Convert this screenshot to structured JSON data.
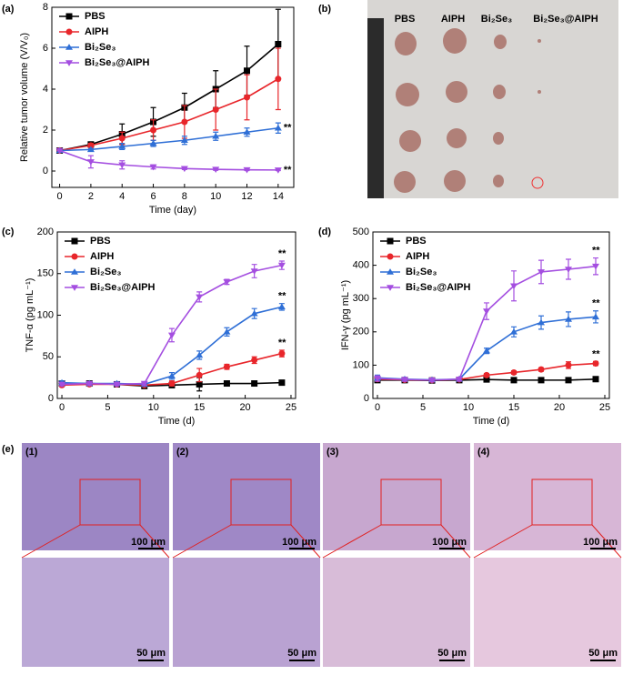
{
  "chart_data": [
    {
      "type": "line",
      "panel": "(a)",
      "xlabel": "Time (day)",
      "ylabel": "Relative tumor volume (V/V₀)",
      "x": [
        0,
        2,
        4,
        6,
        8,
        10,
        12,
        14
      ],
      "xlim": [
        -0.5,
        15
      ],
      "xticks": [
        0,
        2,
        4,
        6,
        8,
        10,
        12,
        14
      ],
      "ylim": [
        -0.8,
        8
      ],
      "yticks": [
        0,
        2,
        4,
        6,
        8
      ],
      "series": [
        {
          "name": "PBS",
          "color": "#000000",
          "values": [
            1,
            1.3,
            1.8,
            2.4,
            3.1,
            4.0,
            4.9,
            6.2
          ],
          "errors": [
            0,
            0.1,
            0.5,
            0.7,
            0.7,
            0.9,
            1.2,
            1.7
          ]
        },
        {
          "name": "AIPH",
          "color": "#e8262b",
          "values": [
            1,
            1.25,
            1.6,
            2.0,
            2.4,
            3.0,
            3.6,
            4.5
          ],
          "errors": [
            0,
            0.1,
            0.3,
            0.5,
            0.8,
            1.0,
            1.1,
            1.5
          ]
        },
        {
          "name": "Bi₂Se₃",
          "color": "#2f6fd6",
          "values": [
            1,
            1.05,
            1.2,
            1.35,
            1.5,
            1.7,
            1.9,
            2.1
          ],
          "errors": [
            0,
            0.05,
            0.15,
            0.15,
            0.2,
            0.2,
            0.2,
            0.25
          ]
        },
        {
          "name": "Bi₂Se₃@AIPH",
          "color": "#a44ee0",
          "values": [
            1,
            0.45,
            0.3,
            0.2,
            0.12,
            0.08,
            0.06,
            0.05
          ],
          "errors": [
            0,
            0.3,
            0.2,
            0.1,
            0.05,
            0.05,
            0.04,
            0.03
          ]
        }
      ],
      "annotations": [
        "**",
        "**"
      ]
    },
    {
      "type": "line",
      "panel": "(c)",
      "xlabel": "Time (d)",
      "ylabel": "TNF-α (pg mL⁻¹)",
      "x": [
        0,
        3,
        6,
        9,
        12,
        15,
        18,
        21,
        24
      ],
      "xlim": [
        -0.5,
        25.5
      ],
      "xticks": [
        0,
        5,
        10,
        15,
        20,
        25
      ],
      "ylim": [
        0,
        200
      ],
      "yticks": [
        0,
        50,
        100,
        150,
        200
      ],
      "series": [
        {
          "name": "PBS",
          "color": "#000000",
          "values": [
            18,
            18,
            17,
            15,
            16,
            17,
            18,
            18,
            19
          ],
          "errors": [
            2,
            2,
            2,
            3,
            3,
            8,
            2,
            2,
            2
          ]
        },
        {
          "name": "AIPH",
          "color": "#e8262b",
          "values": [
            16,
            17,
            17,
            16,
            18,
            28,
            38,
            46,
            54
          ],
          "errors": [
            2,
            2,
            2,
            2,
            3,
            8,
            3,
            4,
            4
          ]
        },
        {
          "name": "Bi₂Se₃",
          "color": "#2f6fd6",
          "values": [
            19,
            18,
            18,
            17,
            27,
            52,
            80,
            102,
            110
          ],
          "errors": [
            2,
            2,
            2,
            2,
            4,
            5,
            5,
            6,
            4
          ]
        },
        {
          "name": "Bi₂Se₃@AIPH",
          "color": "#a44ee0",
          "values": [
            17,
            18,
            17,
            18,
            76,
            122,
            140,
            153,
            160
          ],
          "errors": [
            2,
            2,
            2,
            2,
            8,
            6,
            3,
            8,
            5
          ]
        }
      ],
      "annotations": [
        "**",
        "**",
        "**"
      ]
    },
    {
      "type": "line",
      "panel": "(d)",
      "xlabel": "Time (d)",
      "ylabel": "IFN-γ (pg mL⁻¹)",
      "x": [
        0,
        3,
        6,
        9,
        12,
        15,
        18,
        21,
        24
      ],
      "xlim": [
        -0.5,
        25.5
      ],
      "xticks": [
        0,
        5,
        10,
        15,
        20,
        25
      ],
      "ylim": [
        0,
        500
      ],
      "yticks": [
        0,
        100,
        200,
        300,
        400,
        500
      ],
      "series": [
        {
          "name": "PBS",
          "color": "#000000",
          "values": [
            55,
            55,
            54,
            55,
            57,
            55,
            55,
            55,
            58
          ],
          "errors": [
            5,
            5,
            5,
            5,
            5,
            5,
            5,
            5,
            5
          ]
        },
        {
          "name": "AIPH",
          "color": "#e8262b",
          "values": [
            58,
            56,
            55,
            57,
            70,
            78,
            87,
            100,
            105
          ],
          "errors": [
            5,
            5,
            5,
            5,
            5,
            5,
            5,
            10,
            6
          ]
        },
        {
          "name": "Bi₂Se₃",
          "color": "#2f6fd6",
          "values": [
            62,
            58,
            56,
            58,
            143,
            200,
            228,
            238,
            245
          ],
          "errors": [
            8,
            5,
            5,
            5,
            8,
            15,
            20,
            22,
            18
          ]
        },
        {
          "name": "Bi₂Se₃@AIPH",
          "color": "#a44ee0",
          "values": [
            60,
            57,
            55,
            58,
            262,
            338,
            380,
            388,
            397
          ],
          "errors": [
            8,
            5,
            5,
            5,
            25,
            45,
            35,
            30,
            25
          ]
        }
      ],
      "annotations": [
        "**",
        "**",
        "**"
      ]
    }
  ],
  "photo": {
    "panel": "(b)",
    "labels": [
      "PBS",
      "AIPH",
      "Bi₂Se₃",
      "Bi₂Se₃@AIPH"
    ]
  },
  "histology": {
    "panel": "(e)",
    "labels": [
      "(1)",
      "(2)",
      "(3)",
      "(4)"
    ],
    "scale_large": "100 μm",
    "scale_small": "50 μm"
  }
}
